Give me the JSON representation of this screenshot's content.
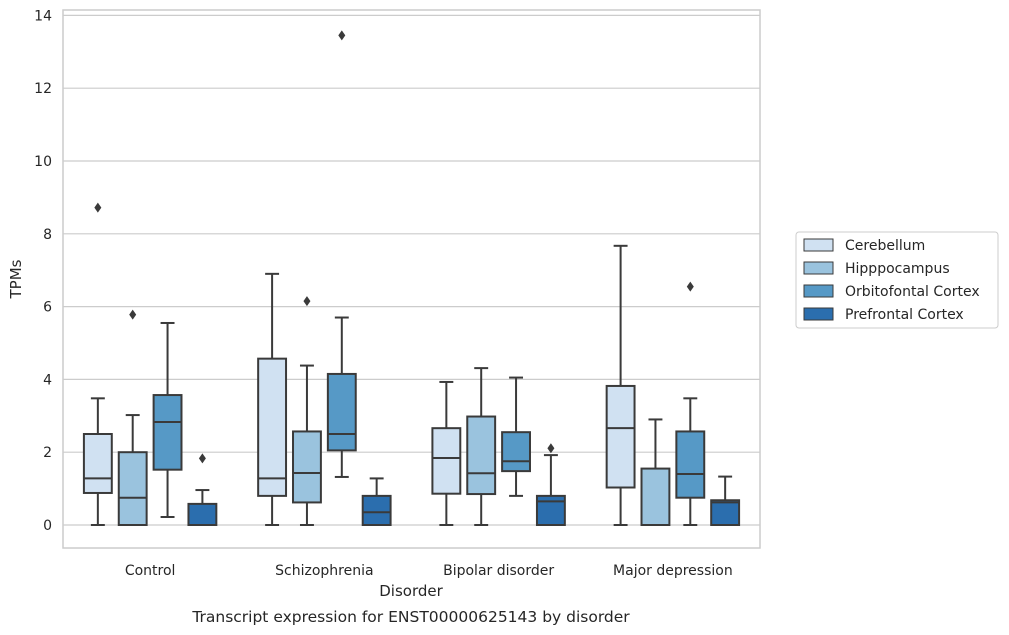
{
  "chart_data": {
    "type": "box",
    "title": "",
    "caption": "Transcript expression for ENST00000625143 by disorder",
    "xlabel": "Disorder",
    "ylabel": "TPMs",
    "ylim": [
      -0.65,
      14.15
    ],
    "yticks": [
      "0",
      "2",
      "4",
      "6",
      "8",
      "10",
      "12",
      "14"
    ],
    "grid": "horizontal",
    "legend_position": "right",
    "categories": [
      "Control",
      "Schizophrenia",
      "Bipolar disorder",
      "Major depression"
    ],
    "series": [
      {
        "name": "Cerebellum",
        "color": "#d0e1f2",
        "boxes": [
          {
            "whislo": 0.0,
            "q1": 0.88,
            "med": 1.28,
            "q3": 2.5,
            "whishi": 3.48,
            "fliers": [
              8.72
            ]
          },
          {
            "whislo": 0.0,
            "q1": 0.8,
            "med": 1.28,
            "q3": 4.57,
            "whishi": 6.9,
            "fliers": []
          },
          {
            "whislo": 0.0,
            "q1": 0.86,
            "med": 1.84,
            "q3": 2.66,
            "whishi": 3.93,
            "fliers": []
          },
          {
            "whislo": 0.0,
            "q1": 1.03,
            "med": 2.66,
            "q3": 3.82,
            "whishi": 7.67,
            "fliers": []
          }
        ]
      },
      {
        "name": "Hipppocampus",
        "color": "#9ac3de",
        "boxes": [
          {
            "whislo": 0.0,
            "q1": 0.0,
            "med": 0.75,
            "q3": 2.0,
            "whishi": 3.02,
            "fliers": [
              5.78
            ]
          },
          {
            "whislo": 0.0,
            "q1": 0.62,
            "med": 1.43,
            "q3": 2.57,
            "whishi": 4.38,
            "fliers": [
              6.15
            ]
          },
          {
            "whislo": 0.0,
            "q1": 0.85,
            "med": 1.42,
            "q3": 2.98,
            "whishi": 4.31,
            "fliers": []
          },
          {
            "whislo": 0.0,
            "q1": 0.0,
            "med": 0.0,
            "q3": 1.55,
            "whishi": 2.9,
            "fliers": []
          }
        ]
      },
      {
        "name": "Orbitofontal Cortex",
        "color": "#5699c6",
        "boxes": [
          {
            "whislo": 0.22,
            "q1": 1.52,
            "med": 2.83,
            "q3": 3.57,
            "whishi": 5.55,
            "fliers": []
          },
          {
            "whislo": 1.32,
            "q1": 2.05,
            "med": 2.5,
            "q3": 4.15,
            "whishi": 5.7,
            "fliers": [
              13.45
            ]
          },
          {
            "whislo": 0.8,
            "q1": 1.48,
            "med": 1.75,
            "q3": 2.55,
            "whishi": 4.05,
            "fliers": []
          },
          {
            "whislo": 0.0,
            "q1": 0.75,
            "med": 1.4,
            "q3": 2.57,
            "whishi": 3.48,
            "fliers": [
              6.55
            ]
          }
        ]
      },
      {
        "name": "Prefrontal Cortex",
        "color": "#2b6eae",
        "boxes": [
          {
            "whislo": 0.0,
            "q1": 0.0,
            "med": 0.0,
            "q3": 0.58,
            "whishi": 0.96,
            "fliers": [
              1.83
            ]
          },
          {
            "whislo": 0.0,
            "q1": 0.0,
            "med": 0.35,
            "q3": 0.8,
            "whishi": 1.28,
            "fliers": []
          },
          {
            "whislo": 0.0,
            "q1": 0.0,
            "med": 0.65,
            "q3": 0.8,
            "whishi": 1.92,
            "fliers": [
              2.11
            ]
          },
          {
            "whislo": 0.0,
            "q1": 0.0,
            "med": 0.62,
            "q3": 0.68,
            "whishi": 1.33,
            "fliers": []
          }
        ]
      }
    ]
  }
}
